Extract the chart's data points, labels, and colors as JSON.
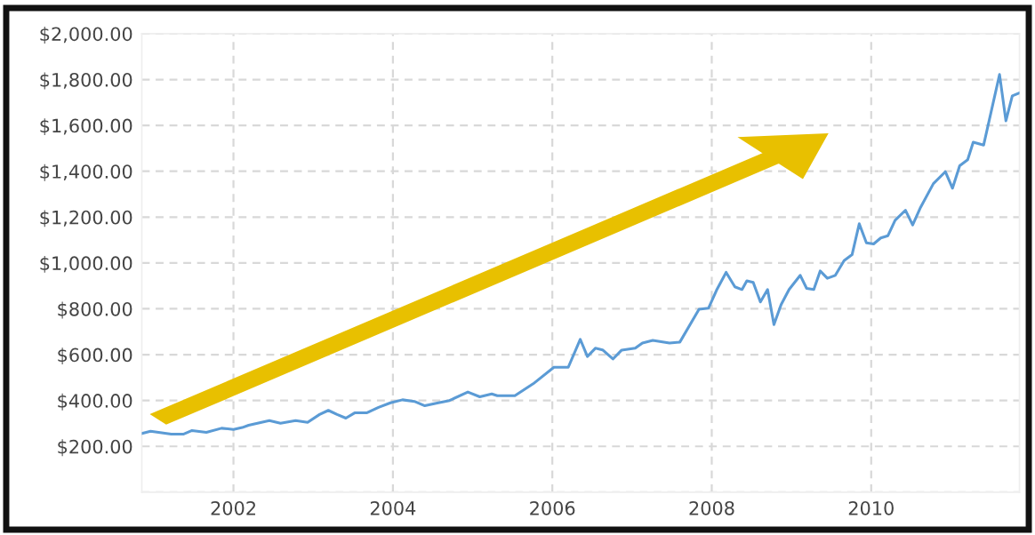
{
  "chart_data": {
    "type": "line",
    "x": [
      2000.85,
      2000.96,
      2001.22,
      2001.37,
      2001.48,
      2001.66,
      2001.85,
      2002.0,
      2002.11,
      2002.19,
      2002.45,
      2002.59,
      2002.78,
      2002.93,
      2003.08,
      2003.19,
      2003.3,
      2003.41,
      2003.52,
      2003.67,
      2003.82,
      2003.97,
      2004.12,
      2004.27,
      2004.4,
      2004.57,
      2004.71,
      2004.94,
      2005.09,
      2005.24,
      2005.31,
      2005.53,
      2005.76,
      2006.02,
      2006.2,
      2006.35,
      2006.44,
      2006.54,
      2006.63,
      2006.76,
      2006.87,
      2007.04,
      2007.13,
      2007.26,
      2007.47,
      2007.6,
      2007.84,
      2007.96,
      2008.06,
      2008.18,
      2008.29,
      2008.38,
      2008.44,
      2008.52,
      2008.61,
      2008.7,
      2008.78,
      2008.87,
      2008.97,
      2009.11,
      2009.19,
      2009.28,
      2009.36,
      2009.45,
      2009.55,
      2009.66,
      2009.76,
      2009.85,
      2009.94,
      2010.03,
      2010.12,
      2010.21,
      2010.3,
      2010.43,
      2010.52,
      2010.62,
      2010.78,
      2010.93,
      2011.02,
      2011.11,
      2011.21,
      2011.28,
      2011.41,
      2011.61,
      2011.69,
      2011.77,
      2011.86
    ],
    "series": [
      {
        "color": "#5b9bd5",
        "values": [
          256,
          266,
          253,
          253,
          269,
          261,
          279,
          274,
          282,
          292,
          312,
          301,
          312,
          305,
          339,
          357,
          339,
          323,
          346,
          346,
          370,
          390,
          403,
          396,
          377,
          390,
          400,
          437,
          416,
          429,
          421,
          421,
          473,
          545,
          545,
          667,
          592,
          628,
          621,
          581,
          620,
          628,
          651,
          662,
          651,
          655,
          798,
          803,
          881,
          959,
          896,
          884,
          922,
          915,
          830,
          884,
          731,
          818,
          884,
          946,
          889,
          884,
          965,
          933,
          946,
          1010,
          1036,
          1171,
          1088,
          1083,
          1109,
          1119,
          1186,
          1230,
          1166,
          1243,
          1346,
          1398,
          1326,
          1424,
          1450,
          1527,
          1514,
          1822,
          1620,
          1729,
          1742
        ]
      }
    ],
    "xlim": [
      2000.85,
      2011.86
    ],
    "xticks": [
      2002,
      2004,
      2006,
      2008,
      2010
    ],
    "ylim": [
      0,
      2000
    ],
    "yticks": [
      {
        "value": 0,
        "label": null
      },
      {
        "value": 200,
        "label": "$200.00"
      },
      {
        "value": 400,
        "label": "$400.00"
      },
      {
        "value": 600,
        "label": "$600.00"
      },
      {
        "value": 800,
        "label": "$800.00"
      },
      {
        "value": 1000,
        "label": "$1,000.00"
      },
      {
        "value": 1200,
        "label": "$1,200.00"
      },
      {
        "value": 1400,
        "label": "$1,400.00"
      },
      {
        "value": 1600,
        "label": "$1,600.00"
      },
      {
        "value": 1800,
        "label": "$1,800.00"
      },
      {
        "value": 2000,
        "label": "$2,000.00"
      }
    ],
    "grid": true,
    "marker": "none",
    "line_style": "solid"
  }
}
